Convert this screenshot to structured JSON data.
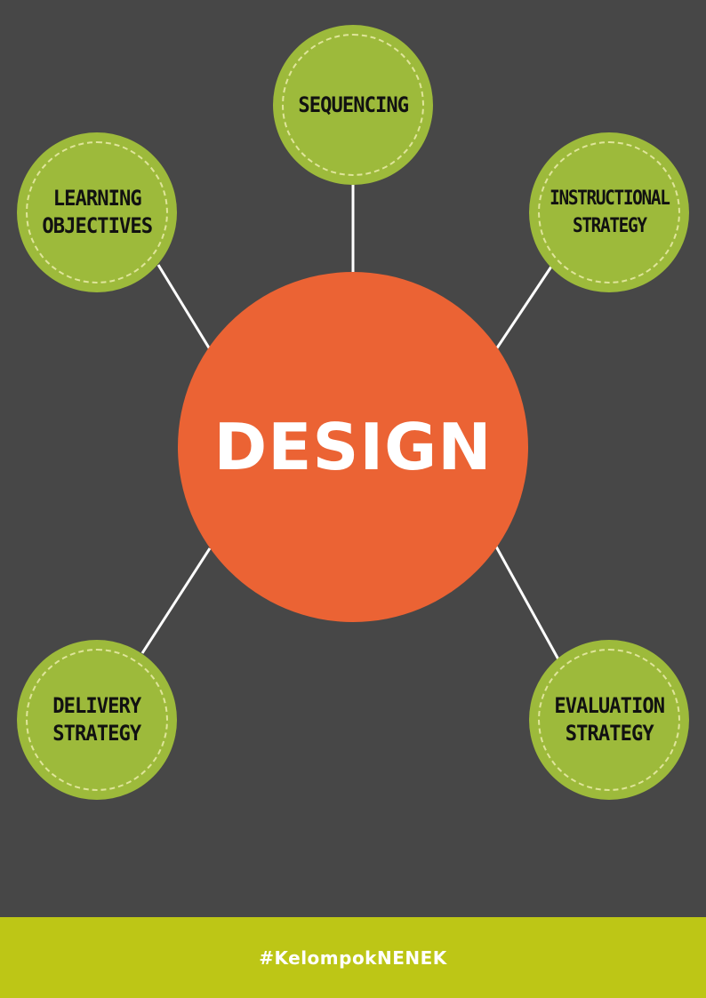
{
  "diagram": {
    "center": {
      "label": "DESIGN",
      "color": "#eb6334"
    },
    "nodes": [
      {
        "id": "sequencing",
        "label": "SEQUENCING"
      },
      {
        "id": "learning-objectives",
        "label": "LEARNING\nOBJECTIVES"
      },
      {
        "id": "instructional-strategy",
        "label": "INSTRUCTIONAL\nSTRATEGY"
      },
      {
        "id": "delivery-strategy",
        "label": "DELIVERY\nSTRATEGY"
      },
      {
        "id": "evaluation-strategy",
        "label": "EVALUATION\nSTRATEGY"
      }
    ],
    "node_color": "#9dba3b",
    "connector_color": "#ffffff",
    "background_color": "#474747"
  },
  "footer": {
    "hashtag": "#KelompokNENEK",
    "color": "#bdc616"
  }
}
